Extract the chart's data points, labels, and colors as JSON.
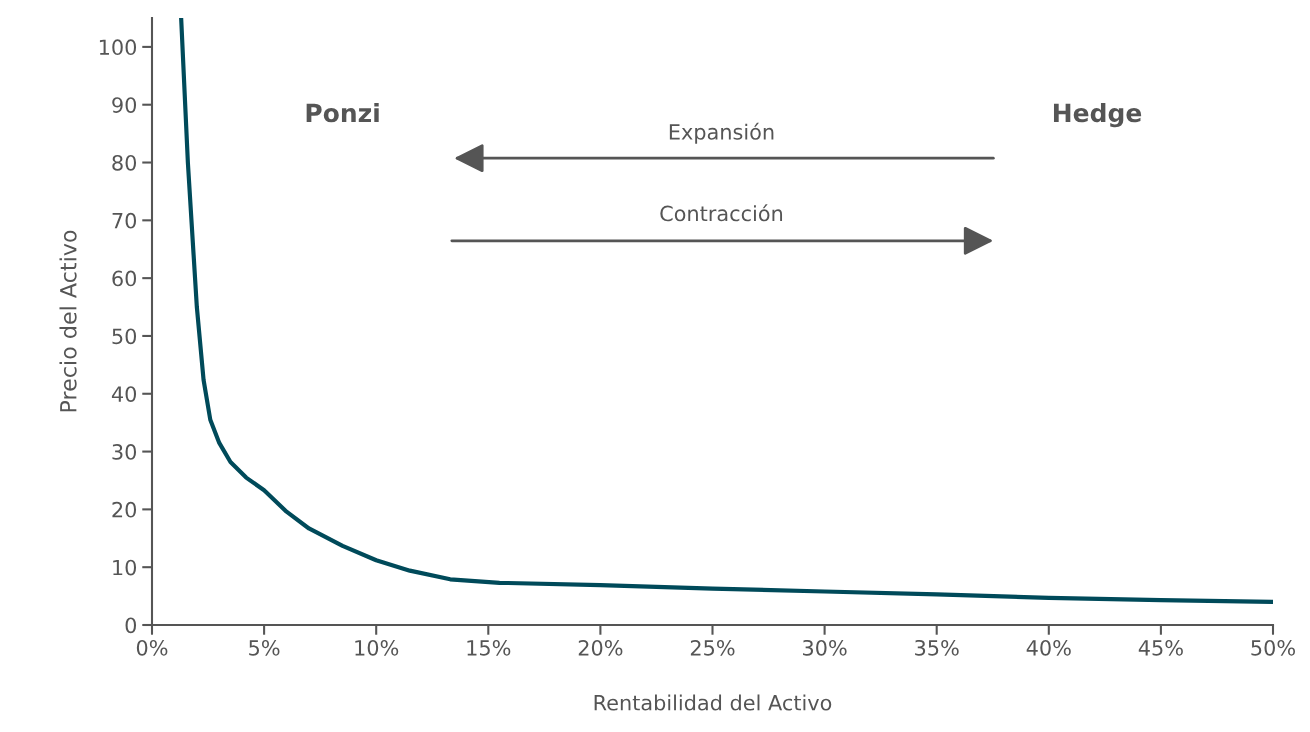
{
  "chart_data": {
    "type": "line",
    "xlabel": "Rentabilidad del Activo",
    "ylabel": "Precio del Activo",
    "annotations": [
      "Ponzi",
      "Hedge",
      "Expansión",
      "Contracción"
    ],
    "series": [
      {
        "color": "#004a5a",
        "x": [
          1.3,
          1.6,
          2.0,
          2.3,
          2.6,
          3.0,
          3.5,
          4.2,
          5.0,
          6.0,
          7.0,
          8.5,
          10.0,
          11.5,
          13.3,
          15.5,
          20,
          25,
          30,
          35,
          40,
          45,
          50
        ],
        "values": [
          105,
          80,
          55,
          42.4,
          35.5,
          31.5,
          28.2,
          25.5,
          23.3,
          19.6,
          16.7,
          13.7,
          11.2,
          9.4,
          7.9,
          7.3,
          6.9,
          6.3,
          5.8,
          5.3,
          4.7,
          4.3,
          4.0
        ]
      }
    ],
    "xlim": [
      0,
      50
    ],
    "ylim": [
      0,
      105
    ],
    "xticks": [
      {
        "value": 0,
        "label": "0%"
      },
      {
        "value": 5,
        "label": "5%"
      },
      {
        "value": 10,
        "label": "10%"
      },
      {
        "value": 15,
        "label": "15%"
      },
      {
        "value": 20,
        "label": "20%"
      },
      {
        "value": 25,
        "label": "25%"
      },
      {
        "value": 30,
        "label": "30%"
      },
      {
        "value": 35,
        "label": "35%"
      },
      {
        "value": 40,
        "label": "40%"
      },
      {
        "value": 45,
        "label": "45%"
      },
      {
        "value": 50,
        "label": "50%"
      }
    ],
    "yticks": [
      0,
      10,
      20,
      30,
      40,
      50,
      60,
      70,
      80,
      90,
      100
    ],
    "grid": false,
    "legend": false,
    "marker": "none",
    "line_style": "solid"
  }
}
